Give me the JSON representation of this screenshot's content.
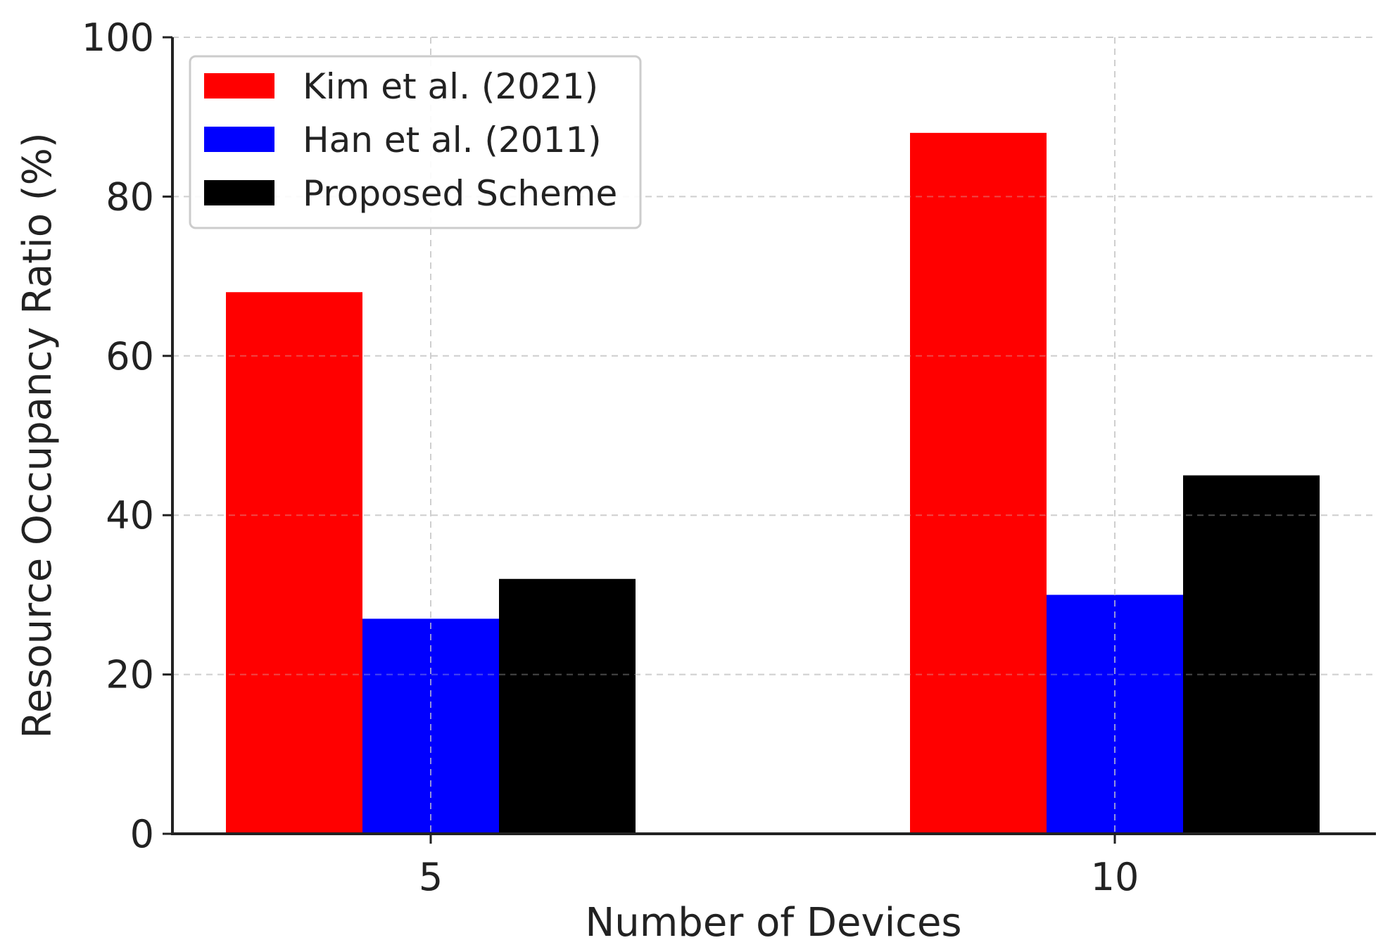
{
  "chart_data": {
    "type": "bar",
    "title": "",
    "xlabel": "Number of Devices",
    "ylabel": "Resource Occupancy Ratio (%)",
    "categories": [
      "5",
      "10"
    ],
    "series": [
      {
        "name": "Kim et al. (2021)",
        "color": "#ff0000",
        "values": [
          68,
          88
        ]
      },
      {
        "name": "Han et al. (2011)",
        "color": "#0000ff",
        "values": [
          27,
          30
        ]
      },
      {
        "name": "Proposed Scheme",
        "color": "#000000",
        "values": [
          32,
          45
        ]
      }
    ],
    "ylim": [
      0,
      100
    ],
    "yticks": [
      0,
      20,
      40,
      60,
      80,
      100
    ],
    "grid": true,
    "legend_position": "top-left"
  }
}
